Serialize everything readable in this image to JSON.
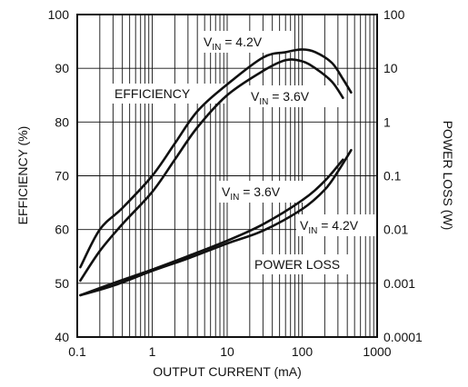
{
  "chart_data": {
    "type": "line",
    "xlabel": "OUTPUT CURRENT (mA)",
    "ylabel": "EFFICIENCY (%)",
    "y2label": "POWER LOSS (W)",
    "xscale": "log",
    "xlim": [
      0.1,
      1000
    ],
    "ylim": [
      40,
      100
    ],
    "y2scale": "log",
    "y2lim": [
      0.0001,
      100
    ],
    "grid": true,
    "x_ticks": [
      "0.1",
      "1",
      "10",
      "100",
      "1000"
    ],
    "y_ticks": [
      "40",
      "50",
      "60",
      "70",
      "80",
      "90",
      "100"
    ],
    "y2_ticks": [
      "0.0001",
      "0.001",
      "0.01",
      "0.1",
      "1",
      "10",
      "100"
    ],
    "series": [
      {
        "name": "EFFICIENCY VIN = 4.2V",
        "axis": "left",
        "x": [
          0.11,
          0.2,
          0.4,
          1,
          2,
          4,
          10,
          30,
          60,
          100,
          150,
          250,
          350,
          450
        ],
        "y": [
          53,
          60,
          64,
          70,
          76,
          82,
          87,
          92,
          93,
          93.5,
          93,
          91,
          88,
          85.5
        ]
      },
      {
        "name": "EFFICIENCY VIN = 3.6V",
        "axis": "left",
        "x": [
          0.11,
          0.2,
          0.4,
          1,
          2,
          4,
          10,
          30,
          60,
          100,
          150,
          250,
          350
        ],
        "y": [
          50.5,
          56,
          61,
          67,
          73,
          79,
          85,
          89.5,
          91.5,
          91.3,
          90,
          87.5,
          84.5
        ]
      },
      {
        "name": "POWER LOSS VIN = 3.6V",
        "axis": "right",
        "x": [
          0.11,
          0.3,
          1,
          3,
          10,
          30,
          100,
          200,
          350
        ],
        "y": [
          0.0006,
          0.001,
          0.0018,
          0.0032,
          0.0062,
          0.0125,
          0.035,
          0.08,
          0.2
        ]
      },
      {
        "name": "POWER LOSS VIN = 4.2V",
        "axis": "right",
        "x": [
          0.11,
          0.3,
          1,
          3,
          10,
          30,
          100,
          200,
          300,
          450
        ],
        "y": [
          0.0006,
          0.0009,
          0.0017,
          0.0029,
          0.0055,
          0.0095,
          0.024,
          0.055,
          0.12,
          0.3
        ]
      }
    ],
    "annotations": {
      "efficiency": "EFFICIENCY",
      "power_loss": "POWER LOSS",
      "vin_42": {
        "main": "V",
        "sub": "IN",
        "rest": " = 4.2V"
      },
      "vin_36": {
        "main": "V",
        "sub": "IN",
        "rest": " = 3.6V"
      }
    }
  }
}
